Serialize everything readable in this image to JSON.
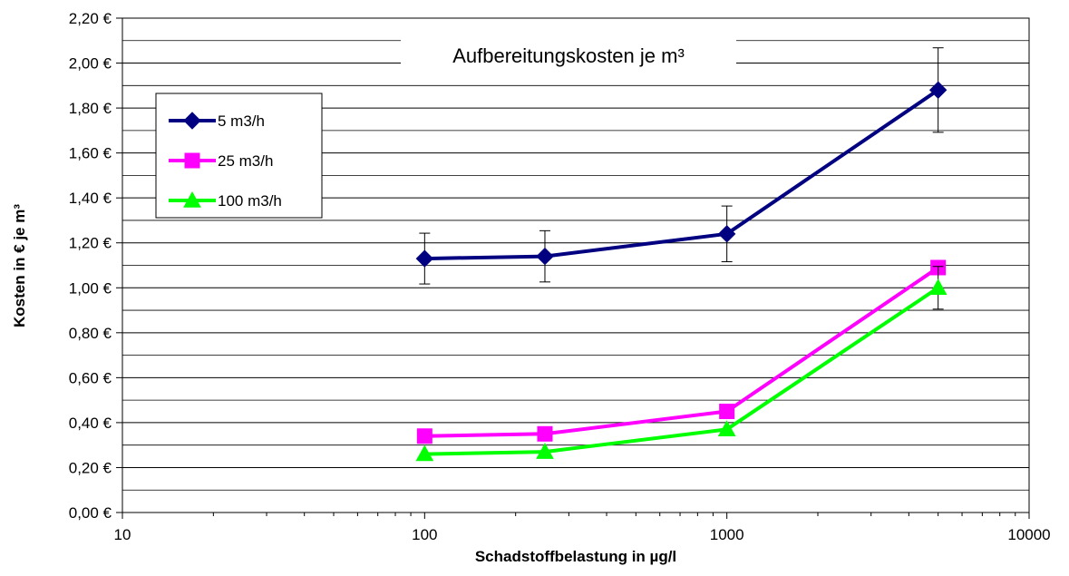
{
  "chart_data": {
    "type": "line",
    "title": "Aufbereitungskosten je m³",
    "xlabel": "Schadstoffbelastung in µg/l",
    "ylabel": "Kosten in € je m³",
    "x_scale": "log",
    "xlim": [
      10,
      10000
    ],
    "ylim": [
      0,
      2.2
    ],
    "x_ticks": [
      10,
      100,
      1000,
      10000
    ],
    "x_tick_labels": [
      "10",
      "100",
      "1000",
      "10000"
    ],
    "y_ticks": [
      0,
      0.2,
      0.4,
      0.6,
      0.8,
      1.0,
      1.2,
      1.4,
      1.6,
      1.8,
      2.0,
      2.2
    ],
    "y_tick_labels": [
      "0,00 €",
      "0,20 €",
      "0,40 €",
      "0,60 €",
      "0,80 €",
      "1,00 €",
      "1,20 €",
      "1,40 €",
      "1,60 €",
      "1,80 €",
      "2,00 €",
      "2,20 €"
    ],
    "grid": true,
    "legend_position": "top-left",
    "series": [
      {
        "name": "5 m3/h",
        "color": "#000080",
        "marker": "diamond",
        "x": [
          100,
          250,
          1000,
          5000
        ],
        "y": [
          1.13,
          1.14,
          1.24,
          1.88
        ],
        "error": [
          0.113,
          0.114,
          0.124,
          0.188
        ]
      },
      {
        "name": "25 m3/h",
        "color": "#ff00ff",
        "marker": "square",
        "x": [
          100,
          250,
          1000,
          5000
        ],
        "y": [
          0.34,
          0.35,
          0.45,
          1.09
        ],
        "error": null
      },
      {
        "name": "100 m3/h",
        "color": "#00ff00",
        "marker": "triangle",
        "x": [
          100,
          250,
          1000,
          5000
        ],
        "y": [
          0.26,
          0.27,
          0.37,
          1.0
        ],
        "error": [
          null,
          null,
          null,
          0.095
        ]
      }
    ]
  }
}
